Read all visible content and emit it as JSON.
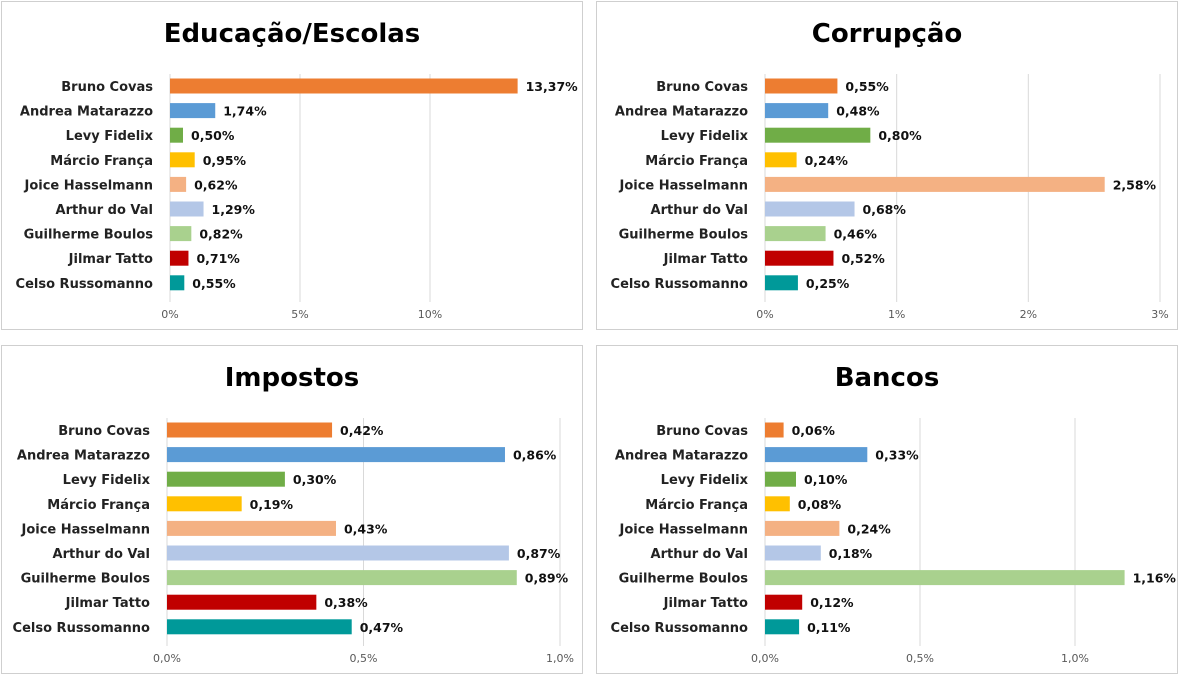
{
  "categories": [
    "Bruno Covas",
    "Andrea Matarazzo",
    "Levy Fidelix",
    "Márcio França",
    "Joice Hasselmann",
    "Arthur do Val",
    "Guilherme Boulos",
    "Jilmar Tatto",
    "Celso Russomanno"
  ],
  "bar_colors": [
    "#ED7D31",
    "#5B9BD5",
    "#70AD47",
    "#FFC000",
    "#F4B183",
    "#B4C7E7",
    "#A9D18E",
    "#C00000",
    "#009999"
  ],
  "chart_data": [
    {
      "type": "bar",
      "orientation": "horizontal",
      "title": "Educação/Escolas",
      "values": [
        13.37,
        1.74,
        0.5,
        0.95,
        0.62,
        1.29,
        0.82,
        0.71,
        0.55
      ],
      "value_labels": [
        "13,37%",
        "1,74%",
        "0,50%",
        "0,95%",
        "0,62%",
        "1,29%",
        "0,82%",
        "0,71%",
        "0,55%"
      ],
      "xlim": [
        0,
        15
      ],
      "ticks": [
        0,
        5,
        10
      ],
      "tick_labels": [
        "0%",
        "5%",
        "10%"
      ],
      "grid": true
    },
    {
      "type": "bar",
      "orientation": "horizontal",
      "title": "Corrupção",
      "values": [
        0.55,
        0.48,
        0.8,
        0.24,
        2.58,
        0.68,
        0.46,
        0.52,
        0.25
      ],
      "value_labels": [
        "0,55%",
        "0,48%",
        "0,80%",
        "0,24%",
        "2,58%",
        "0,68%",
        "0,46%",
        "0,52%",
        "0,25%"
      ],
      "xlim": [
        0,
        3
      ],
      "ticks": [
        0,
        1,
        2,
        3
      ],
      "tick_labels": [
        "0%",
        "1%",
        "2%",
        "3%"
      ],
      "grid": true
    },
    {
      "type": "bar",
      "orientation": "horizontal",
      "title": "Impostos",
      "values": [
        0.42,
        0.86,
        0.3,
        0.19,
        0.43,
        0.87,
        0.89,
        0.38,
        0.47
      ],
      "value_labels": [
        "0,42%",
        "0,86%",
        "0,30%",
        "0,19%",
        "0,43%",
        "0,87%",
        "0,89%",
        "0,38%",
        "0,47%"
      ],
      "xlim": [
        0,
        1.0
      ],
      "ticks": [
        0,
        0.5,
        1.0
      ],
      "tick_labels": [
        "0,0%",
        "0,5%",
        "1,0%"
      ],
      "grid": true
    },
    {
      "type": "bar",
      "orientation": "horizontal",
      "title": "Bancos",
      "values": [
        0.06,
        0.33,
        0.1,
        0.08,
        0.24,
        0.18,
        1.16,
        0.12,
        0.11
      ],
      "value_labels": [
        "0,06%",
        "0,33%",
        "0,10%",
        "0,08%",
        "0,24%",
        "0,18%",
        "1,16%",
        "0,12%",
        "0,11%"
      ],
      "xlim": [
        0,
        1.3
      ],
      "ticks": [
        0,
        0.5,
        1.0
      ],
      "tick_labels": [
        "0,0%",
        "0,5%",
        "1,0%"
      ],
      "grid": true
    }
  ]
}
